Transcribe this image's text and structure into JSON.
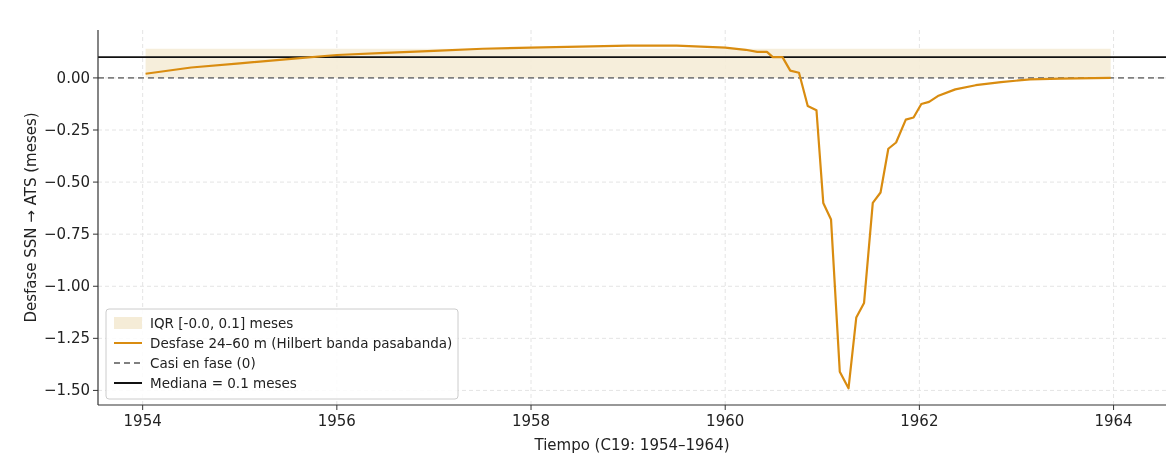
{
  "chart_data": {
    "type": "line",
    "xlabel": "Tiempo (C19: 1954–1964)",
    "ylabel": "Desfase SSN → ATS (meses)",
    "xlim": [
      1953.54,
      1964.54
    ],
    "ylim": [
      -1.57,
      0.23
    ],
    "xticks": [
      1954,
      1956,
      1958,
      1960,
      1962,
      1964
    ],
    "yticks": [
      {
        "value": 0,
        "label": "0.00"
      },
      {
        "value": -0.25,
        "label": "−0.25"
      },
      {
        "value": -0.5,
        "label": "−0.50"
      },
      {
        "value": -0.75,
        "label": "−0.75"
      },
      {
        "value": -1,
        "label": "−1.00"
      },
      {
        "value": -1.25,
        "label": "−1.25"
      },
      {
        "value": -1.5,
        "label": "−1.50"
      }
    ],
    "grid": true,
    "legend": "bottom left",
    "line_style": "solid",
    "series": [
      {
        "name": "Desfase 24–60 m (Hilbert banda pasabanda)",
        "color": "#d98c10",
        "x": [
          1954.03,
          1954.5,
          1955,
          1955.5,
          1956,
          1956.5,
          1957,
          1957.5,
          1958,
          1958.5,
          1959,
          1959.5,
          1960,
          1960.21,
          1960.33,
          1960.43,
          1960.49,
          1960.59,
          1960.67,
          1960.76,
          1960.85,
          1960.94,
          1961.01,
          1961.09,
          1961.18,
          1961.27,
          1961.35,
          1961.43,
          1961.52,
          1961.6,
          1961.68,
          1961.76,
          1961.86,
          1961.94,
          1962.02,
          1962.1,
          1962.19,
          1962.37,
          1962.58,
          1962.84,
          1963.14,
          1963.45,
          1963.97
        ],
        "values": [
          0.02,
          0.05,
          0.07,
          0.09,
          0.11,
          0.12,
          0.13,
          0.14,
          0.145,
          0.15,
          0.155,
          0.155,
          0.145,
          0.135,
          0.125,
          0.125,
          0.1,
          0.1,
          0.035,
          0.025,
          -0.135,
          -0.155,
          -0.6,
          -0.68,
          -1.41,
          -1.49,
          -1.15,
          -1.08,
          -0.6,
          -0.55,
          -0.34,
          -0.31,
          -0.2,
          -0.19,
          -0.125,
          -0.115,
          -0.087,
          -0.055,
          -0.035,
          -0.02,
          -0.007,
          -0.003,
          0
        ]
      }
    ],
    "bands": [
      {
        "axis": "y",
        "from": 0,
        "to": 0.14,
        "label": "IQR [-0.0, 0.1] meses",
        "color": "#f5ecd7"
      }
    ],
    "ref_lines": [
      {
        "axis": "y",
        "value": 0,
        "label": "Casi en fase (0)",
        "color": "#808080",
        "line_style": "dashed"
      },
      {
        "axis": "y",
        "value": 0.1,
        "label": "Mediana = 0.1 meses",
        "color": "#111111",
        "line_style": "solid"
      }
    ]
  }
}
